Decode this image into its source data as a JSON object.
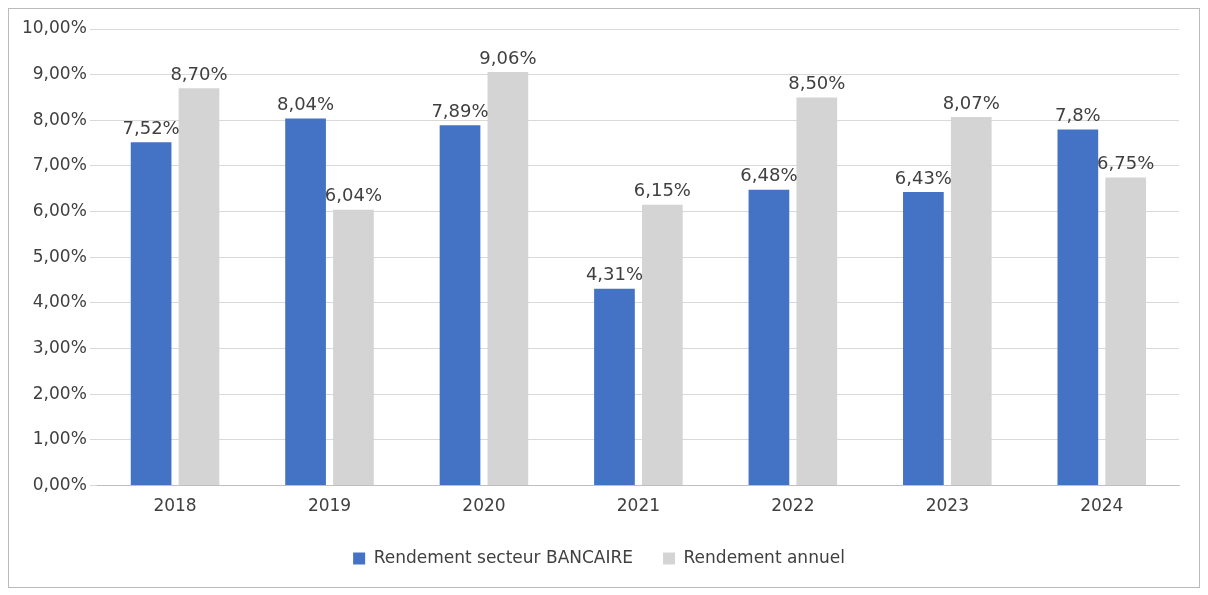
{
  "chart_data": {
    "type": "bar",
    "categories": [
      "2018",
      "2019",
      "2020",
      "2021",
      "2022",
      "2023",
      "2024"
    ],
    "series": [
      {
        "name": "Rendement secteur BANCAIRE",
        "color": "#4472c4",
        "values": [
          7.52,
          8.04,
          7.89,
          4.31,
          6.48,
          6.43,
          7.8
        ],
        "value_labels": [
          "7,52%",
          "8,04%",
          "7,89%",
          "4,31%",
          "6,48%",
          "6,43%",
          "7,8%"
        ]
      },
      {
        "name": "Rendement annuel",
        "color": "#d4d4d4",
        "values": [
          8.7,
          6.04,
          9.06,
          6.15,
          8.5,
          8.07,
          6.75
        ],
        "value_labels": [
          "8,70%",
          "6,04%",
          "9,06%",
          "6,15%",
          "8,50%",
          "8,07%",
          "6,75%"
        ]
      }
    ],
    "ylim": [
      0,
      10
    ],
    "yticks": [
      {
        "value": 0,
        "label": "0,00%"
      },
      {
        "value": 1,
        "label": "1,00%"
      },
      {
        "value": 2,
        "label": "2,00%"
      },
      {
        "value": 3,
        "label": "3,00%"
      },
      {
        "value": 4,
        "label": "4,00%"
      },
      {
        "value": 5,
        "label": "5,00%"
      },
      {
        "value": 6,
        "label": "6,00%"
      },
      {
        "value": 7,
        "label": "7,00%"
      },
      {
        "value": 8,
        "label": "8,00%"
      },
      {
        "value": 9,
        "label": "9,00%"
      },
      {
        "value": 10,
        "label": "10,00%"
      }
    ],
    "grid": "y",
    "legend": "bottom"
  }
}
